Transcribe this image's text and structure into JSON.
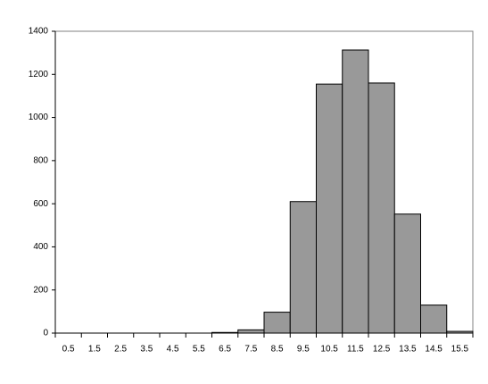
{
  "chart_data": {
    "type": "bar",
    "categories": [
      "0.5",
      "1.5",
      "2.5",
      "3.5",
      "4.5",
      "5.5",
      "6.5",
      "7.5",
      "8.5",
      "9.5",
      "10.5",
      "11.5",
      "12.5",
      "13.5",
      "14.5",
      "15.5"
    ],
    "values": [
      0,
      0,
      0,
      0,
      0,
      0,
      3,
      15,
      97,
      610,
      1155,
      1313,
      1160,
      552,
      130,
      8
    ],
    "color": "#999999",
    "ylim": [
      0,
      1400
    ],
    "yticks": [
      0,
      200,
      400,
      600,
      800,
      1000,
      1200,
      1400
    ],
    "grid": false
  }
}
